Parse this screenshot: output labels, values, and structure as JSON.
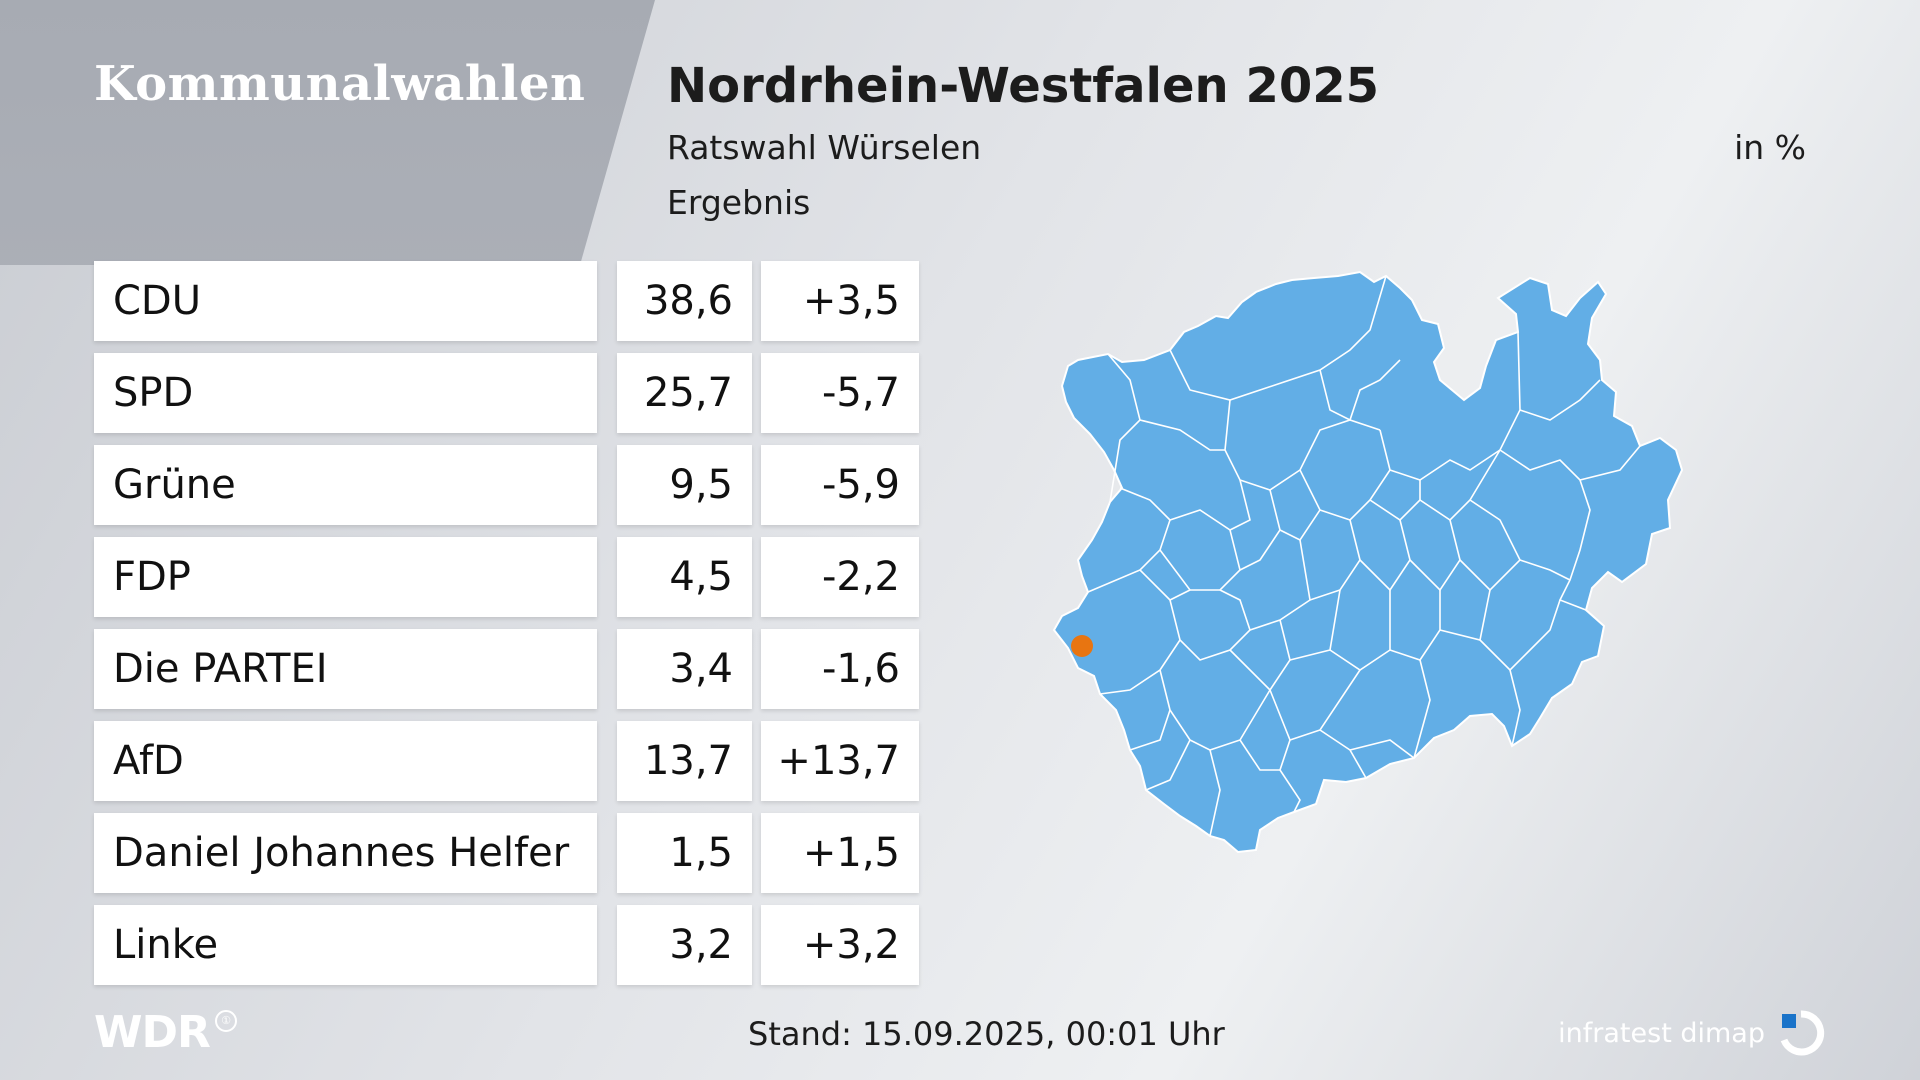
{
  "header": {
    "kicker": "Kommunalwahlen",
    "title": "Nordrhein-Westfalen 2025",
    "subtitle": "Ratswahl Würselen",
    "subtitle2": "Ergebnis",
    "unit": "in %"
  },
  "results": [
    {
      "party": "CDU",
      "value": "38,6",
      "diff": "+3,5"
    },
    {
      "party": "SPD",
      "value": "25,7",
      "diff": "-5,7"
    },
    {
      "party": "Grüne",
      "value": "9,5",
      "diff": "-5,9"
    },
    {
      "party": "FDP",
      "value": "4,5",
      "diff": "-2,2"
    },
    {
      "party": "Die PARTEI",
      "value": "3,4",
      "diff": "-1,6"
    },
    {
      "party": "AfD",
      "value": "13,7",
      "diff": "+13,7"
    },
    {
      "party": "Daniel Johannes Helfer",
      "value": "1,5",
      "diff": "+1,5"
    },
    {
      "party": "Linke",
      "value": "3,2",
      "diff": "+3,2"
    }
  ],
  "map": {
    "fill_color": "#62aee6",
    "border_color": "#ffffff",
    "marker_color": "#e87511"
  },
  "footer": {
    "broadcaster": "WDR",
    "ard_mark": "①",
    "stand": "Stand: 15.09.2025, 00:01 Uhr",
    "institute": "infratest dimap"
  }
}
